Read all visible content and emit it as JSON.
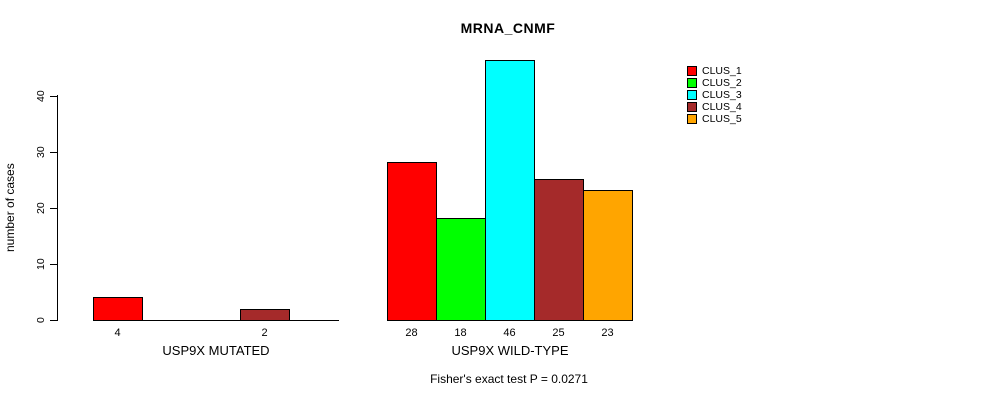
{
  "chart_data": {
    "type": "bar",
    "title": "MRNA_CNMF",
    "ylabel": "number of cases",
    "note": "Fisher's exact test P = 0.0271",
    "yticks": [
      0,
      10,
      20,
      30,
      40
    ],
    "ylim": [
      0,
      46
    ],
    "grid": false,
    "legend_position": "right",
    "series": [
      {
        "name": "CLUS_1",
        "color": "#ff0000"
      },
      {
        "name": "CLUS_2",
        "color": "#00ff00"
      },
      {
        "name": "CLUS_3",
        "color": "#00ffff"
      },
      {
        "name": "CLUS_4",
        "color": "#a52a2a"
      },
      {
        "name": "CLUS_5",
        "color": "#ffa500"
      }
    ],
    "groups": [
      {
        "label": "USP9X MUTATED",
        "values": [
          4,
          0,
          0,
          2,
          0
        ],
        "bar_labels": [
          "4",
          "",
          "",
          "2",
          ""
        ]
      },
      {
        "label": "USP9X WILD-TYPE",
        "values": [
          28,
          18,
          46,
          25,
          23
        ],
        "bar_labels": [
          "28",
          "18",
          "46",
          "25",
          "23"
        ]
      }
    ]
  }
}
